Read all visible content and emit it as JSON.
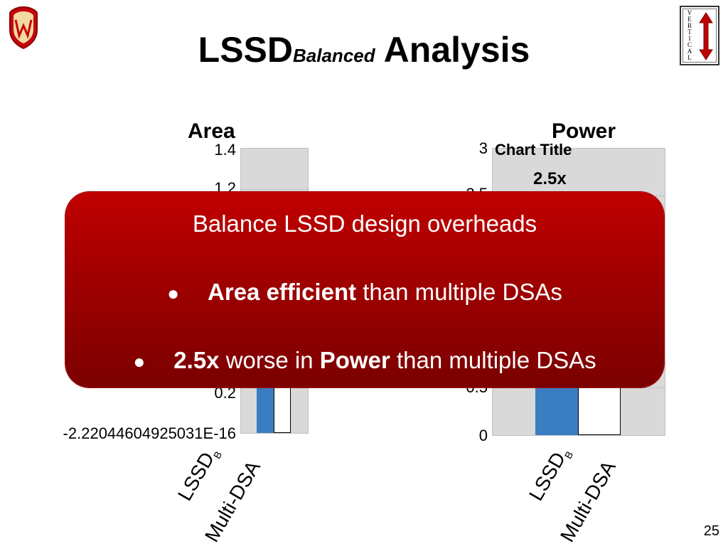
{
  "slide": {
    "title_main": "LSSD",
    "title_sub": "Balanced",
    "title_rest": "Analysis",
    "page_number": "25"
  },
  "logos": {
    "left_logo_icon": "uw-crest-icon",
    "right_logo_icon": "vertical-logo-icon",
    "right_logo_text": "VERTICAL"
  },
  "area_chart": {
    "heading": "Area",
    "y_ticks": [
      "1.4",
      "1.2",
      "0.2",
      "-2.22044604925031E-16"
    ],
    "categories": [
      "LSSD",
      "Multi-DSA"
    ],
    "subscript": "B"
  },
  "power_chart": {
    "heading": "Power",
    "chart_title": "Chart Title",
    "annotation": "2.5x",
    "y_ticks": [
      "3",
      "2.5",
      "0.5",
      "0"
    ],
    "categories": [
      "LSSD",
      "Multi-DSA"
    ],
    "subscript": "B"
  },
  "callout": {
    "headline": "Balance LSSD design overheads",
    "bullet1_bold": "Area efficient",
    "bullet1_rest": " than multiple DSAs",
    "bullet2_bold1": "2.5x",
    "bullet2_mid": " worse in ",
    "bullet2_bold2": "Power",
    "bullet2_rest": " than multiple DSAs"
  },
  "colors": {
    "accent_red": "#c00000",
    "bar_blue": "#3a7dc0",
    "bar_white": "#ffffff"
  }
}
